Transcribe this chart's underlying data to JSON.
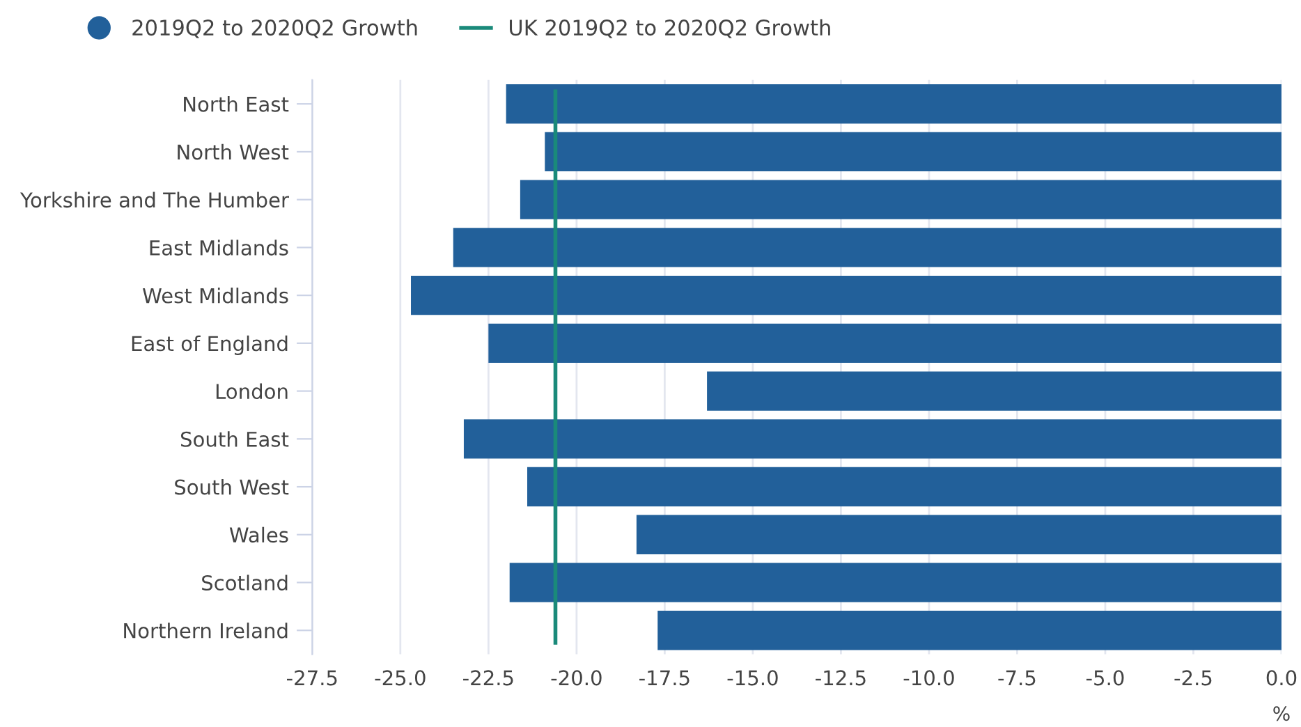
{
  "chart_data": {
    "type": "bar",
    "orientation": "horizontal",
    "categories": [
      "North East",
      "North West",
      "Yorkshire and The Humber",
      "East Midlands",
      "West Midlands",
      "East of England",
      "London",
      "South East",
      "South West",
      "Wales",
      "Scotland",
      "Northern Ireland"
    ],
    "series": [
      {
        "name": "2019Q2 to 2020Q2 Growth",
        "color": "#22609a",
        "values": [
          -22.0,
          -20.9,
          -21.6,
          -23.5,
          -24.7,
          -22.5,
          -16.3,
          -23.2,
          -21.4,
          -18.3,
          -21.9,
          -17.7
        ]
      }
    ],
    "ref_lines": [
      {
        "axis": "x",
        "value": -20.6,
        "label": "UK 2019Q2 to 2020Q2 Growth",
        "color": "#1a8a7a"
      }
    ],
    "xlim": [
      -27.5,
      0
    ],
    "xticks": [
      -27.5,
      {
        "value": -25,
        "label": "-25.0"
      },
      -22.5,
      {
        "value": -20,
        "label": "-20.0"
      },
      -17.5,
      {
        "value": -15,
        "label": "-15.0"
      },
      -12.5,
      {
        "value": -10,
        "label": "-10.0"
      },
      -7.5,
      {
        "value": -5,
        "label": "-5.0"
      },
      -2.5,
      {
        "value": 0,
        "label": "0.0"
      }
    ],
    "xlabel": "%",
    "grid": "x",
    "legend": "top left"
  }
}
